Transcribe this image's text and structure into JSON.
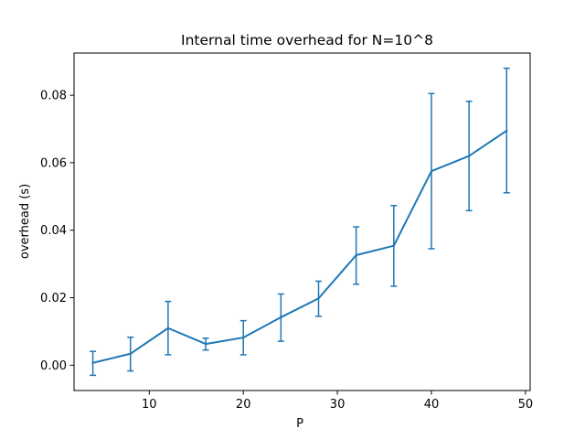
{
  "chart_data": {
    "type": "line",
    "title": "Internal time overhead for N=10^8",
    "xlabel": "P",
    "ylabel": "overhead (s)",
    "xlim": [
      2,
      50.5
    ],
    "ylim": [
      -0.0075,
      0.0925
    ],
    "xticks": [
      10,
      20,
      30,
      40,
      50
    ],
    "yticks": [
      0.0,
      0.02,
      0.04,
      0.06,
      0.08
    ],
    "ytick_labels": [
      "0.00",
      "0.02",
      "0.04",
      "0.06",
      "0.08"
    ],
    "grid": false,
    "legend": "none",
    "color": "#1f77b4",
    "series": [
      {
        "x": [
          4,
          8,
          12,
          16,
          20,
          24,
          28,
          32,
          36,
          40,
          44,
          48
        ],
        "y": [
          0.0007,
          0.0034,
          0.011,
          0.0063,
          0.0082,
          0.0142,
          0.0198,
          0.0326,
          0.0354,
          0.0575,
          0.062,
          0.0695
        ],
        "yerr_low": [
          -0.003,
          -0.0017,
          0.0031,
          0.0045,
          0.0031,
          0.0071,
          0.0145,
          0.024,
          0.0234,
          0.0345,
          0.0458,
          0.0511
        ],
        "yerr_high": [
          0.0041,
          0.0083,
          0.0189,
          0.008,
          0.0132,
          0.0211,
          0.0249,
          0.041,
          0.0473,
          0.0805,
          0.0782,
          0.088
        ]
      }
    ]
  }
}
